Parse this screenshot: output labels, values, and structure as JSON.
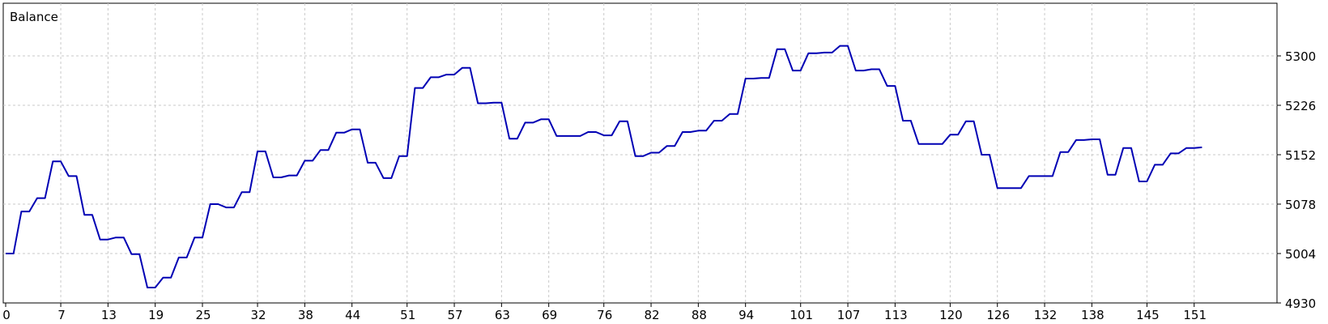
{
  "chart_data": {
    "type": "line",
    "title": "Balance",
    "xlabel": "",
    "ylabel": "",
    "grid": true,
    "legend": "none",
    "line_color": "#0000b4",
    "xlim": [
      0,
      157
    ],
    "ylim": [
      4930,
      5350
    ],
    "x_ticks": [
      0,
      7,
      13,
      19,
      25,
      32,
      38,
      44,
      51,
      57,
      63,
      69,
      76,
      82,
      88,
      94,
      101,
      107,
      113,
      120,
      126,
      132,
      138,
      145,
      151
    ],
    "y_ticks": [
      4930,
      5004,
      5078,
      5152,
      5226,
      5300
    ],
    "series": [
      {
        "points": [
          [
            0,
            5004
          ],
          [
            1,
            5004
          ],
          [
            2,
            5067
          ],
          [
            3,
            5067
          ],
          [
            4,
            5087
          ],
          [
            5,
            5087
          ],
          [
            6,
            5142
          ],
          [
            7,
            5142
          ],
          [
            8,
            5120
          ],
          [
            9,
            5120
          ],
          [
            10,
            5062
          ],
          [
            11,
            5062
          ],
          [
            12,
            5025
          ],
          [
            13,
            5025
          ],
          [
            14,
            5028
          ],
          [
            15,
            5028
          ],
          [
            16,
            5003
          ],
          [
            17,
            5003
          ],
          [
            18,
            4953
          ],
          [
            19,
            4953
          ],
          [
            20,
            4968
          ],
          [
            21,
            4968
          ],
          [
            22,
            4998
          ],
          [
            23,
            4998
          ],
          [
            24,
            5028
          ],
          [
            25,
            5028
          ],
          [
            26,
            5078
          ],
          [
            27,
            5078
          ],
          [
            28,
            5073
          ],
          [
            29,
            5073
          ],
          [
            30,
            5096
          ],
          [
            31,
            5096
          ],
          [
            32,
            5157
          ],
          [
            33,
            5157
          ],
          [
            34,
            5118
          ],
          [
            35,
            5118
          ],
          [
            36,
            5121
          ],
          [
            37,
            5121
          ],
          [
            38,
            5143
          ],
          [
            39,
            5143
          ],
          [
            40,
            5159
          ],
          [
            41,
            5159
          ],
          [
            42,
            5185
          ],
          [
            43,
            5185
          ],
          [
            44,
            5190
          ],
          [
            45,
            5190
          ],
          [
            46,
            5140
          ],
          [
            47,
            5140
          ],
          [
            48,
            5117
          ],
          [
            49,
            5117
          ],
          [
            50,
            5150
          ],
          [
            51,
            5150
          ],
          [
            52,
            5252
          ],
          [
            53,
            5252
          ],
          [
            54,
            5268
          ],
          [
            55,
            5268
          ],
          [
            56,
            5272
          ],
          [
            57,
            5272
          ],
          [
            58,
            5282
          ],
          [
            59,
            5282
          ],
          [
            60,
            5229
          ],
          [
            61,
            5229
          ],
          [
            62,
            5230
          ],
          [
            63,
            5230
          ],
          [
            64,
            5176
          ],
          [
            65,
            5176
          ],
          [
            66,
            5200
          ],
          [
            67,
            5200
          ],
          [
            68,
            5205
          ],
          [
            69,
            5205
          ],
          [
            70,
            5180
          ],
          [
            71,
            5180
          ],
          [
            72,
            5180
          ],
          [
            73,
            5180
          ],
          [
            74,
            5186
          ],
          [
            75,
            5186
          ],
          [
            76,
            5181
          ],
          [
            77,
            5181
          ],
          [
            78,
            5202
          ],
          [
            79,
            5202
          ],
          [
            80,
            5150
          ],
          [
            81,
            5150
          ],
          [
            82,
            5155
          ],
          [
            83,
            5155
          ],
          [
            84,
            5165
          ],
          [
            85,
            5165
          ],
          [
            86,
            5186
          ],
          [
            87,
            5186
          ],
          [
            88,
            5188
          ],
          [
            89,
            5188
          ],
          [
            90,
            5203
          ],
          [
            91,
            5203
          ],
          [
            92,
            5213
          ],
          [
            93,
            5213
          ],
          [
            94,
            5266
          ],
          [
            95,
            5266
          ],
          [
            96,
            5267
          ],
          [
            97,
            5267
          ],
          [
            98,
            5310
          ],
          [
            99,
            5310
          ],
          [
            100,
            5278
          ],
          [
            101,
            5278
          ],
          [
            102,
            5304
          ],
          [
            103,
            5304
          ],
          [
            104,
            5305
          ],
          [
            105,
            5305
          ],
          [
            106,
            5315
          ],
          [
            107,
            5315
          ],
          [
            108,
            5278
          ],
          [
            109,
            5278
          ],
          [
            110,
            5280
          ],
          [
            111,
            5280
          ],
          [
            112,
            5255
          ],
          [
            113,
            5255
          ],
          [
            114,
            5203
          ],
          [
            115,
            5203
          ],
          [
            116,
            5168
          ],
          [
            117,
            5168
          ],
          [
            118,
            5168
          ],
          [
            119,
            5168
          ],
          [
            120,
            5182
          ],
          [
            121,
            5182
          ],
          [
            122,
            5202
          ],
          [
            123,
            5202
          ],
          [
            124,
            5152
          ],
          [
            125,
            5152
          ],
          [
            126,
            5102
          ],
          [
            127,
            5102
          ],
          [
            128,
            5102
          ],
          [
            129,
            5102
          ],
          [
            130,
            5120
          ],
          [
            131,
            5120
          ],
          [
            132,
            5120
          ],
          [
            133,
            5120
          ],
          [
            134,
            5156
          ],
          [
            135,
            5156
          ],
          [
            136,
            5174
          ],
          [
            137,
            5174
          ],
          [
            138,
            5175
          ],
          [
            139,
            5175
          ],
          [
            140,
            5122
          ],
          [
            141,
            5122
          ],
          [
            142,
            5162
          ],
          [
            143,
            5162
          ],
          [
            144,
            5112
          ],
          [
            145,
            5112
          ],
          [
            146,
            5137
          ],
          [
            147,
            5137
          ],
          [
            148,
            5154
          ],
          [
            149,
            5154
          ],
          [
            150,
            5162
          ],
          [
            151,
            5162
          ],
          [
            152,
            5163
          ]
        ]
      }
    ]
  }
}
